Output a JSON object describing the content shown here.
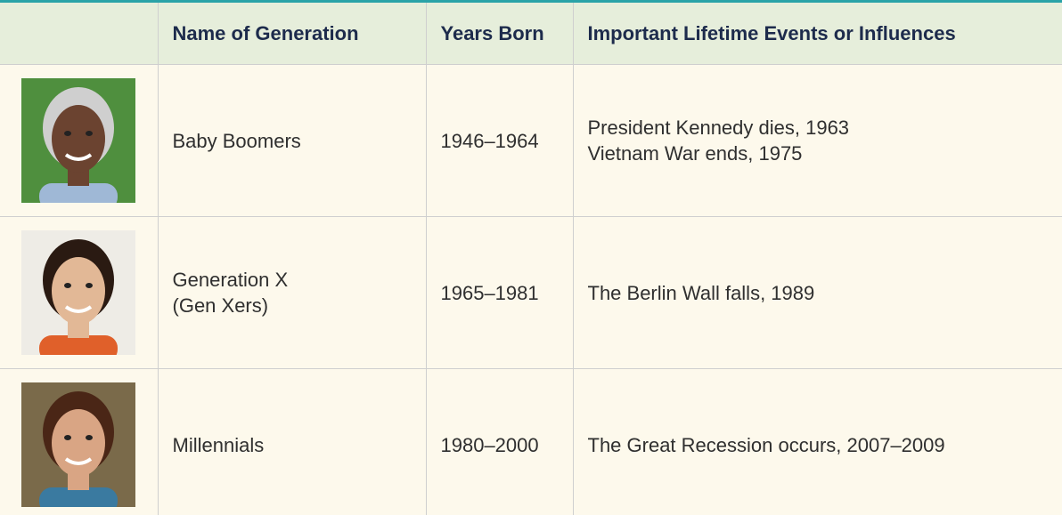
{
  "table": {
    "headers": [
      "Name of Generation",
      "Years Born",
      "Important Lifetime Events or Influences"
    ],
    "rows": [
      {
        "name": [
          "Baby Boomers"
        ],
        "years": "1946–1964",
        "events": [
          "President Kennedy dies, 1963",
          "Vietnam War ends, 1975"
        ]
      },
      {
        "name": [
          "Generation X",
          "(Gen Xers)"
        ],
        "years": "1965–1981",
        "events": [
          "The Berlin Wall falls, 1989"
        ]
      },
      {
        "name": [
          "Millennials"
        ],
        "years": "1980–2000",
        "events": [
          "The Great Recession occurs, 2007–2009"
        ]
      }
    ]
  }
}
